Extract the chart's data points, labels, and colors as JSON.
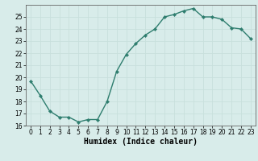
{
  "x": [
    0,
    1,
    2,
    3,
    4,
    5,
    6,
    7,
    8,
    9,
    10,
    11,
    12,
    13,
    14,
    15,
    16,
    17,
    18,
    19,
    20,
    21,
    22,
    23
  ],
  "y": [
    19.7,
    18.5,
    17.2,
    16.7,
    16.7,
    16.3,
    16.5,
    16.5,
    18.0,
    20.5,
    21.9,
    22.8,
    23.5,
    24.0,
    25.0,
    25.2,
    25.5,
    25.7,
    25.0,
    25.0,
    24.8,
    24.1,
    24.0,
    23.2
  ],
  "line_color": "#2e7d6e",
  "marker": "D",
  "marker_size": 2.2,
  "linewidth": 1.0,
  "xlabel": "Humidex (Indice chaleur)",
  "xlabel_fontsize": 7,
  "ylim": [
    16,
    26
  ],
  "xlim": [
    -0.5,
    23.5
  ],
  "yticks": [
    16,
    17,
    18,
    19,
    20,
    21,
    22,
    23,
    24,
    25
  ],
  "xticks": [
    0,
    1,
    2,
    3,
    4,
    5,
    6,
    7,
    8,
    9,
    10,
    11,
    12,
    13,
    14,
    15,
    16,
    17,
    18,
    19,
    20,
    21,
    22,
    23
  ],
  "grid_color": "#c8e0dc",
  "bg_color": "#d8ecea",
  "tick_fontsize": 5.5,
  "spine_color": "#666666"
}
